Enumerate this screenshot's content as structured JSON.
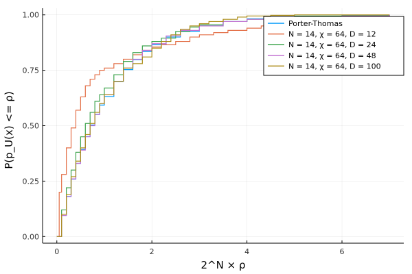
{
  "chart_data": {
    "type": "line",
    "xlabel": "2^N × ρ",
    "ylabel": "P(p_U(x) <= ρ)",
    "xlim": [
      -0.3,
      7.3
    ],
    "ylim": [
      -0.03,
      1.03
    ],
    "x_ticks": [
      0,
      2,
      4,
      6
    ],
    "x_tick_labels": [
      "0",
      "2",
      "4",
      "6"
    ],
    "y_ticks": [
      0,
      0.25,
      0.5,
      0.75,
      1.0
    ],
    "y_tick_labels": [
      "0.00",
      "0.25",
      "0.50",
      "0.75",
      "1.00"
    ],
    "grid": true,
    "legend_position": "top-right",
    "series": [
      {
        "name": "Porter-Thomas",
        "color": "#009AFA",
        "points": [
          [
            0,
            0
          ],
          [
            0.1,
            0.095
          ],
          [
            0.2,
            0.181
          ],
          [
            0.3,
            0.259
          ],
          [
            0.4,
            0.33
          ],
          [
            0.5,
            0.393
          ],
          [
            0.6,
            0.451
          ],
          [
            0.7,
            0.503
          ],
          [
            0.8,
            0.551
          ],
          [
            0.9,
            0.593
          ],
          [
            1.0,
            0.632
          ],
          [
            1.2,
            0.699
          ],
          [
            1.4,
            0.753
          ],
          [
            1.6,
            0.798
          ],
          [
            1.8,
            0.835
          ],
          [
            2.0,
            0.865
          ],
          [
            2.3,
            0.9
          ],
          [
            2.6,
            0.926
          ],
          [
            3.0,
            0.95
          ],
          [
            3.5,
            0.97
          ],
          [
            4.0,
            0.982
          ],
          [
            5.0,
            0.993
          ],
          [
            6.0,
            0.998
          ],
          [
            7.0,
            0.999
          ]
        ]
      },
      {
        "name": "N = 14, χ = 64, D = 12",
        "color": "#E36F47",
        "points": [
          [
            0,
            0
          ],
          [
            0.05,
            0.2
          ],
          [
            0.1,
            0.28
          ],
          [
            0.2,
            0.4
          ],
          [
            0.3,
            0.49
          ],
          [
            0.4,
            0.57
          ],
          [
            0.5,
            0.63
          ],
          [
            0.6,
            0.68
          ],
          [
            0.7,
            0.71
          ],
          [
            0.8,
            0.73
          ],
          [
            0.9,
            0.75
          ],
          [
            1.0,
            0.76
          ],
          [
            1.2,
            0.78
          ],
          [
            1.4,
            0.8
          ],
          [
            1.6,
            0.82
          ],
          [
            1.8,
            0.84
          ],
          [
            2.0,
            0.855
          ],
          [
            2.2,
            0.865
          ],
          [
            2.5,
            0.88
          ],
          [
            2.8,
            0.9
          ],
          [
            3.0,
            0.91
          ],
          [
            3.3,
            0.92
          ],
          [
            3.6,
            0.93
          ],
          [
            4.0,
            0.94
          ],
          [
            4.3,
            0.95
          ],
          [
            4.6,
            0.96
          ],
          [
            5.0,
            0.97
          ],
          [
            5.3,
            0.98
          ],
          [
            5.6,
            0.985
          ],
          [
            6.0,
            0.99
          ],
          [
            6.5,
            0.995
          ],
          [
            7.0,
            1.0
          ]
        ]
      },
      {
        "name": "N = 14, χ = 64, D = 24",
        "color": "#3EA44E",
        "points": [
          [
            0,
            0
          ],
          [
            0.1,
            0.12
          ],
          [
            0.2,
            0.22
          ],
          [
            0.3,
            0.3
          ],
          [
            0.4,
            0.38
          ],
          [
            0.5,
            0.45
          ],
          [
            0.6,
            0.51
          ],
          [
            0.7,
            0.56
          ],
          [
            0.8,
            0.61
          ],
          [
            0.9,
            0.64
          ],
          [
            1.0,
            0.67
          ],
          [
            1.2,
            0.73
          ],
          [
            1.4,
            0.79
          ],
          [
            1.6,
            0.83
          ],
          [
            1.8,
            0.86
          ],
          [
            2.0,
            0.88
          ],
          [
            2.2,
            0.895
          ],
          [
            2.5,
            0.925
          ],
          [
            2.8,
            0.945
          ],
          [
            3.0,
            0.955
          ],
          [
            3.5,
            0.97
          ],
          [
            4.0,
            0.98
          ],
          [
            4.5,
            0.99
          ],
          [
            5.0,
            0.995
          ],
          [
            6.0,
            0.998
          ],
          [
            7.0,
            1.0
          ]
        ]
      },
      {
        "name": "N = 14, χ = 64, D = 48",
        "color": "#C271D2",
        "points": [
          [
            0,
            0
          ],
          [
            0.1,
            0.095
          ],
          [
            0.2,
            0.18
          ],
          [
            0.3,
            0.26
          ],
          [
            0.4,
            0.33
          ],
          [
            0.5,
            0.39
          ],
          [
            0.6,
            0.45
          ],
          [
            0.7,
            0.5
          ],
          [
            0.8,
            0.55
          ],
          [
            0.9,
            0.6
          ],
          [
            1.0,
            0.64
          ],
          [
            1.2,
            0.7
          ],
          [
            1.4,
            0.76
          ],
          [
            1.6,
            0.8
          ],
          [
            1.8,
            0.84
          ],
          [
            2.0,
            0.87
          ],
          [
            2.3,
            0.905
          ],
          [
            2.6,
            0.93
          ],
          [
            3.0,
            0.95
          ],
          [
            3.5,
            0.97
          ],
          [
            4.0,
            0.98
          ],
          [
            5.0,
            0.99
          ],
          [
            6.0,
            0.995
          ],
          [
            7.0,
            1.0
          ]
        ]
      },
      {
        "name": "N = 14, χ = 64, D = 100",
        "color": "#AC8D18",
        "points": [
          [
            0,
            0
          ],
          [
            0.1,
            0.1
          ],
          [
            0.2,
            0.19
          ],
          [
            0.3,
            0.27
          ],
          [
            0.4,
            0.34
          ],
          [
            0.5,
            0.4
          ],
          [
            0.6,
            0.46
          ],
          [
            0.7,
            0.51
          ],
          [
            0.8,
            0.56
          ],
          [
            0.9,
            0.6
          ],
          [
            1.0,
            0.64
          ],
          [
            1.2,
            0.7
          ],
          [
            1.4,
            0.76
          ],
          [
            1.6,
            0.78
          ],
          [
            1.8,
            0.81
          ],
          [
            2.0,
            0.85
          ],
          [
            2.2,
            0.88
          ],
          [
            2.4,
            0.91
          ],
          [
            2.6,
            0.935
          ],
          [
            2.8,
            0.95
          ],
          [
            3.0,
            0.96
          ],
          [
            3.2,
            0.97
          ],
          [
            3.5,
            0.98
          ],
          [
            3.8,
            0.99
          ],
          [
            4.0,
            0.995
          ],
          [
            4.5,
            0.998
          ],
          [
            5.0,
            1.0
          ],
          [
            7.0,
            1.0
          ]
        ]
      }
    ]
  }
}
